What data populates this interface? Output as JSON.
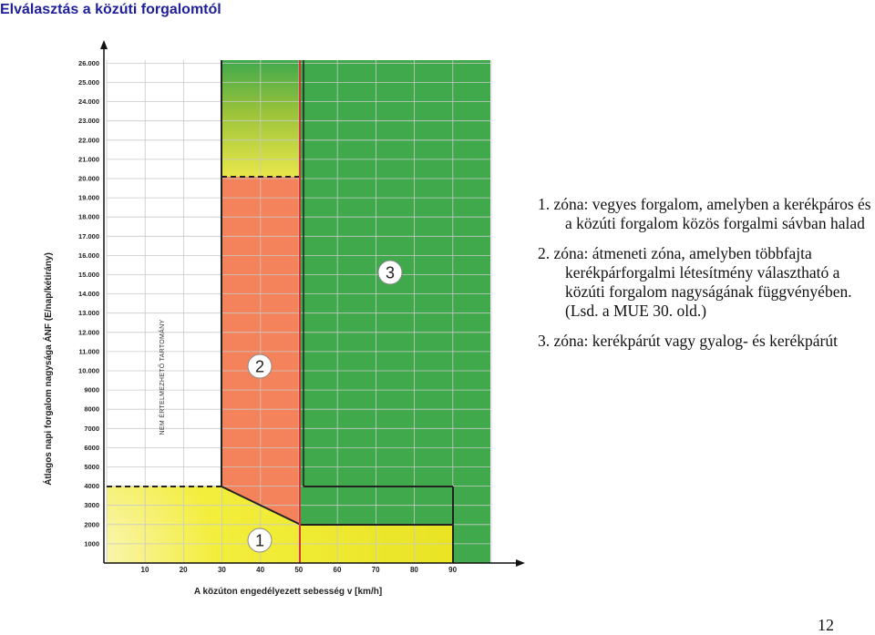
{
  "title": "Elválasztás a közúti forgalomtól",
  "figure": {
    "y_axis_label": "Átlagos napi forgalom nagysága ÁNF (E/nap/kétirány)",
    "x_axis_label": "A közúton engedélyezett sebesség v [km/h]",
    "undefined_range_label": "NEM ÉRTELMEZHETŐ TARTOMÁNY",
    "y_ticks": [
      "1000",
      "2000",
      "3000",
      "4000",
      "5000",
      "6000",
      "7000",
      "8000",
      "9000",
      "10.000",
      "11.000",
      "12.000",
      "13.000",
      "14.000",
      "15.000",
      "16.000",
      "17.000",
      "18.000",
      "19.000",
      "20.000",
      "21.000",
      "22.000",
      "23.000",
      "24.000",
      "25.000",
      "26.000"
    ],
    "x_ticks": [
      "10",
      "20",
      "30",
      "40",
      "50",
      "60",
      "70",
      "80",
      "90"
    ],
    "zone_badges": [
      "1",
      "2",
      "3"
    ],
    "zone_colors": {
      "zone1": "#f0ea22",
      "zone2": "#f4825a",
      "zone3": "#3fa94c"
    },
    "boundary_line_color": "#d9363a"
  },
  "legend": [
    {
      "number": "1.",
      "text": "zóna: vegyes forgalom, amelyben a kerékpáros és a közúti forgalom közös forgalmi sávban halad"
    },
    {
      "number": "2.",
      "text": "zóna: átmeneti zóna, amelyben többfajta kerékpárforgalmi létesítmény választható a közúti forgalom nagyságának függvényében. (Lsd. a MUE 30. old.)"
    },
    {
      "number": "3.",
      "text": "zóna: kerékpárút vagy gyalog- és kerékpárút"
    }
  ],
  "page_number": "12"
}
